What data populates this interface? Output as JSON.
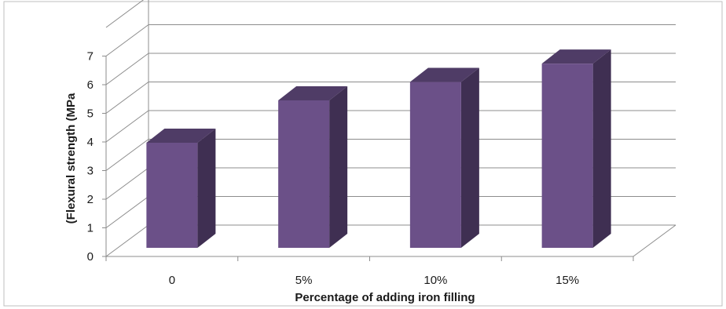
{
  "chart_data": {
    "type": "bar",
    "style": "3d-column",
    "categories": [
      "0",
      "5%",
      "10%",
      "15%"
    ],
    "values": [
      3.9,
      5.4,
      6.05,
      6.7
    ],
    "xlabel": "Percentage of adding iron filling",
    "ylabel": "(Flexural strength (MPa",
    "ylim": [
      0,
      7
    ],
    "yticks": [
      "0",
      "1",
      "2",
      "3",
      "4",
      "5",
      "6",
      "7"
    ],
    "grid": true,
    "legend": "none",
    "colors": {
      "bar_front": "#6b5088",
      "bar_top": "#4f3c66",
      "bar_side": "#3f2f52",
      "grid": "#8c8c8c",
      "frame": "#bfbfbf"
    }
  }
}
